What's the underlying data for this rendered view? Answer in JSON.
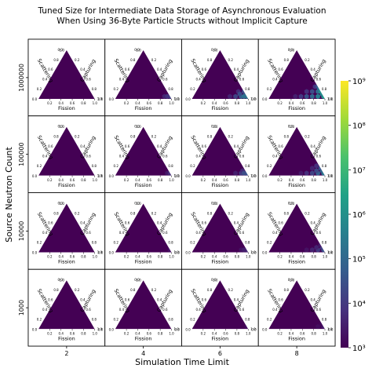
{
  "chart_data": {
    "type": "heatmap",
    "title_lines": [
      "Tuned Size for Intermediate Data Storage of Asynchronous Evaluation",
      "When Using 36-Byte Particle Structs without Implicit Capture"
    ],
    "xlabel": "Simulation Time Limit",
    "ylabel": "Source Neutron Count",
    "columns": [
      "2",
      "4",
      "6",
      "8"
    ],
    "rows": [
      "1000000",
      "100000",
      "10000",
      "1000"
    ],
    "ternary_axes": {
      "bottom": "Fission",
      "left": "Scattering",
      "right": "Capturing"
    },
    "ternary_ticks": [
      "0.2",
      "0.4",
      "0.6",
      "0.8",
      "1.0"
    ],
    "ternary_apex_tick": "0.0",
    "ternary_corner_ticks": {
      "left": "0.0",
      "right": "0.0"
    },
    "colorbar": {
      "scale": "log",
      "colormap": "viridis",
      "range": [
        1000,
        1000000000
      ],
      "tick_labels": [
        "10³",
        "10⁴",
        "10⁵",
        "10⁶",
        "10⁷",
        "10⁸",
        "10⁹"
      ],
      "colors": [
        "#440154",
        "#46327e",
        "#365c8d",
        "#277f8e",
        "#1fa187",
        "#4ac16d",
        "#a0da39",
        "#fde725"
      ]
    },
    "base_log_value": 3,
    "panels": [
      {
        "row": "1000000",
        "col": "2",
        "cells": []
      },
      {
        "row": "1000000",
        "col": "4",
        "cells": [
          {
            "fission": 0.85,
            "capturing": 0.05,
            "log_value": 3.6
          },
          {
            "fission": 0.95,
            "capturing": 0.05,
            "log_value": 4.2
          },
          {
            "fission": 0.9,
            "capturing": 0.05,
            "log_value": 3.9
          }
        ]
      },
      {
        "row": "1000000",
        "col": "6",
        "cells": [
          {
            "fission": 0.65,
            "capturing": 0.05,
            "log_value": 3.6
          },
          {
            "fission": 0.75,
            "capturing": 0.05,
            "log_value": 4.2
          },
          {
            "fission": 0.85,
            "capturing": 0.05,
            "log_value": 4.8
          },
          {
            "fission": 0.95,
            "capturing": 0.05,
            "log_value": 5.4
          },
          {
            "fission": 0.75,
            "capturing": 0.15,
            "log_value": 3.7
          },
          {
            "fission": 0.8,
            "capturing": 0.1,
            "log_value": 4.4
          },
          {
            "fission": 0.9,
            "capturing": 0.1,
            "log_value": 5.0
          },
          {
            "fission": 0.85,
            "capturing": 0.15,
            "log_value": 4.3
          },
          {
            "fission": 0.9,
            "capturing": 0.05,
            "log_value": 5.2
          }
        ]
      },
      {
        "row": "1000000",
        "col": "8",
        "cells": [
          {
            "fission": 0.45,
            "capturing": 0.05,
            "log_value": 3.5
          },
          {
            "fission": 0.55,
            "capturing": 0.05,
            "log_value": 4.0
          },
          {
            "fission": 0.65,
            "capturing": 0.05,
            "log_value": 4.5
          },
          {
            "fission": 0.75,
            "capturing": 0.05,
            "log_value": 5.0
          },
          {
            "fission": 0.85,
            "capturing": 0.05,
            "log_value": 5.6
          },
          {
            "fission": 0.95,
            "capturing": 0.05,
            "log_value": 6.2
          },
          {
            "fission": 0.6,
            "capturing": 0.15,
            "log_value": 3.8
          },
          {
            "fission": 0.7,
            "capturing": 0.15,
            "log_value": 4.4
          },
          {
            "fission": 0.8,
            "capturing": 0.15,
            "log_value": 5.0
          },
          {
            "fission": 0.9,
            "capturing": 0.1,
            "log_value": 5.8
          },
          {
            "fission": 0.7,
            "capturing": 0.25,
            "log_value": 3.9
          },
          {
            "fission": 0.75,
            "capturing": 0.25,
            "log_value": 4.6
          },
          {
            "fission": 0.8,
            "capturing": 0.2,
            "log_value": 5.3
          },
          {
            "fission": 0.85,
            "capturing": 0.15,
            "log_value": 5.9
          }
        ]
      },
      {
        "row": "100000",
        "col": "2",
        "cells": []
      },
      {
        "row": "100000",
        "col": "4",
        "cells": [
          {
            "fission": 0.9,
            "capturing": 0.05,
            "log_value": 3.4
          },
          {
            "fission": 0.95,
            "capturing": 0.05,
            "log_value": 3.8
          }
        ]
      },
      {
        "row": "100000",
        "col": "6",
        "cells": [
          {
            "fission": 0.75,
            "capturing": 0.05,
            "log_value": 3.5
          },
          {
            "fission": 0.85,
            "capturing": 0.05,
            "log_value": 4.0
          },
          {
            "fission": 0.95,
            "capturing": 0.05,
            "log_value": 4.6
          },
          {
            "fission": 0.85,
            "capturing": 0.1,
            "log_value": 3.7
          },
          {
            "fission": 0.9,
            "capturing": 0.05,
            "log_value": 4.4
          }
        ]
      },
      {
        "row": "100000",
        "col": "8",
        "cells": [
          {
            "fission": 0.55,
            "capturing": 0.05,
            "log_value": 3.4
          },
          {
            "fission": 0.65,
            "capturing": 0.05,
            "log_value": 3.8
          },
          {
            "fission": 0.75,
            "capturing": 0.05,
            "log_value": 4.2
          },
          {
            "fission": 0.85,
            "capturing": 0.05,
            "log_value": 4.8
          },
          {
            "fission": 0.95,
            "capturing": 0.05,
            "log_value": 5.4
          },
          {
            "fission": 0.7,
            "capturing": 0.15,
            "log_value": 3.6
          },
          {
            "fission": 0.8,
            "capturing": 0.1,
            "log_value": 4.3
          },
          {
            "fission": 0.9,
            "capturing": 0.1,
            "log_value": 5.0
          },
          {
            "fission": 0.75,
            "capturing": 0.2,
            "log_value": 3.8
          },
          {
            "fission": 0.85,
            "capturing": 0.15,
            "log_value": 4.6
          }
        ]
      },
      {
        "row": "10000",
        "col": "2",
        "cells": []
      },
      {
        "row": "10000",
        "col": "4",
        "cells": [
          {
            "fission": 0.95,
            "capturing": 0.05,
            "log_value": 3.3
          }
        ]
      },
      {
        "row": "10000",
        "col": "6",
        "cells": [
          {
            "fission": 0.85,
            "capturing": 0.05,
            "log_value": 3.3
          },
          {
            "fission": 0.95,
            "capturing": 0.05,
            "log_value": 3.7
          },
          {
            "fission": 0.9,
            "capturing": 0.05,
            "log_value": 3.5
          }
        ]
      },
      {
        "row": "10000",
        "col": "8",
        "cells": [
          {
            "fission": 0.65,
            "capturing": 0.05,
            "log_value": 3.3
          },
          {
            "fission": 0.75,
            "capturing": 0.05,
            "log_value": 3.6
          },
          {
            "fission": 0.85,
            "capturing": 0.05,
            "log_value": 4.0
          },
          {
            "fission": 0.95,
            "capturing": 0.05,
            "log_value": 4.5
          },
          {
            "fission": 0.8,
            "capturing": 0.1,
            "log_value": 3.6
          },
          {
            "fission": 0.9,
            "capturing": 0.1,
            "log_value": 4.1
          },
          {
            "fission": 0.85,
            "capturing": 0.15,
            "log_value": 3.5
          }
        ]
      },
      {
        "row": "1000",
        "col": "2",
        "cells": []
      },
      {
        "row": "1000",
        "col": "4",
        "cells": []
      },
      {
        "row": "1000",
        "col": "6",
        "cells": [
          {
            "fission": 0.95,
            "capturing": 0.05,
            "log_value": 3.2
          }
        ]
      },
      {
        "row": "1000",
        "col": "8",
        "cells": [
          {
            "fission": 0.85,
            "capturing": 0.05,
            "log_value": 3.2
          },
          {
            "fission": 0.95,
            "capturing": 0.05,
            "log_value": 3.4
          },
          {
            "fission": 0.9,
            "capturing": 0.1,
            "log_value": 3.2
          }
        ]
      }
    ]
  }
}
